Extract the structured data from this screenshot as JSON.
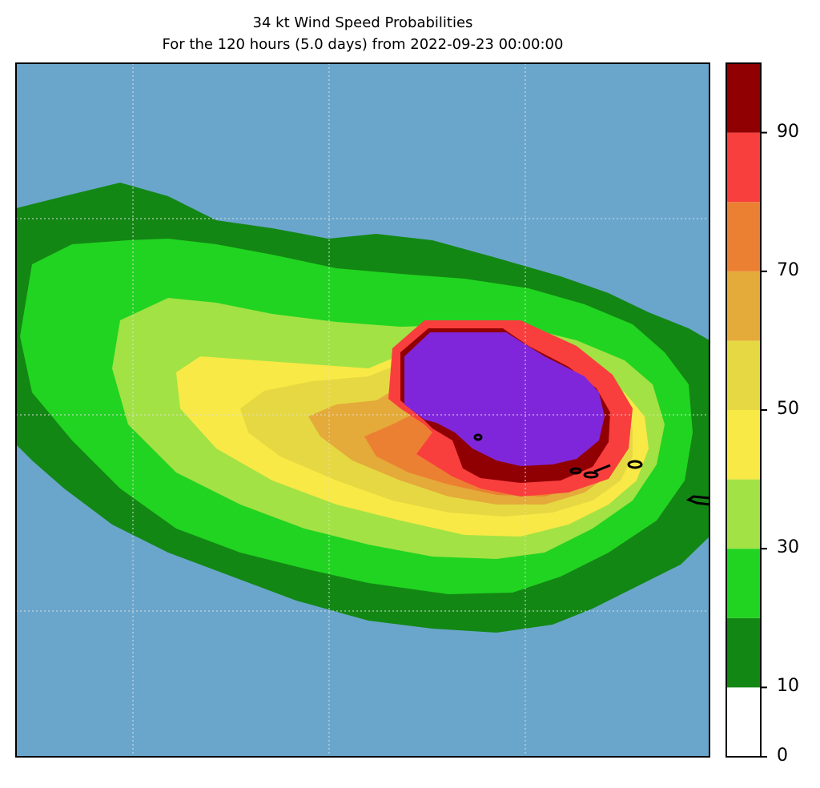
{
  "title_line1": "34 kt Wind Speed Probabilities",
  "title_line2": "For the 120 hours (5.0 days) from 2022-09-23 00:00:00",
  "colors": {
    "ocean": "#6aa6cc",
    "levels": [
      "#ffffff",
      "#138714",
      "#21d421",
      "#a2e244",
      "#f8e946",
      "#e6d843",
      "#e4aa3a",
      "#ec8032",
      "#f93e3e",
      "#900003",
      "#8026da"
    ],
    "coast": "#000000",
    "grid": "#dddddd"
  },
  "colorbar": {
    "min": 0,
    "max": 100,
    "step": 10,
    "ticks": [
      "0",
      "10",
      "30",
      "50",
      "70",
      "90"
    ]
  },
  "chart_data": {
    "type": "heatmap",
    "title": "34 kt Wind Speed Probabilities",
    "subtitle": "For the 120 hours (5.0 days) from 2022-09-23 00:00:00",
    "levels": [
      0,
      10,
      20,
      30,
      40,
      50,
      60,
      70,
      80,
      90,
      100
    ],
    "grid": true,
    "legend": "colorbar-right"
  }
}
